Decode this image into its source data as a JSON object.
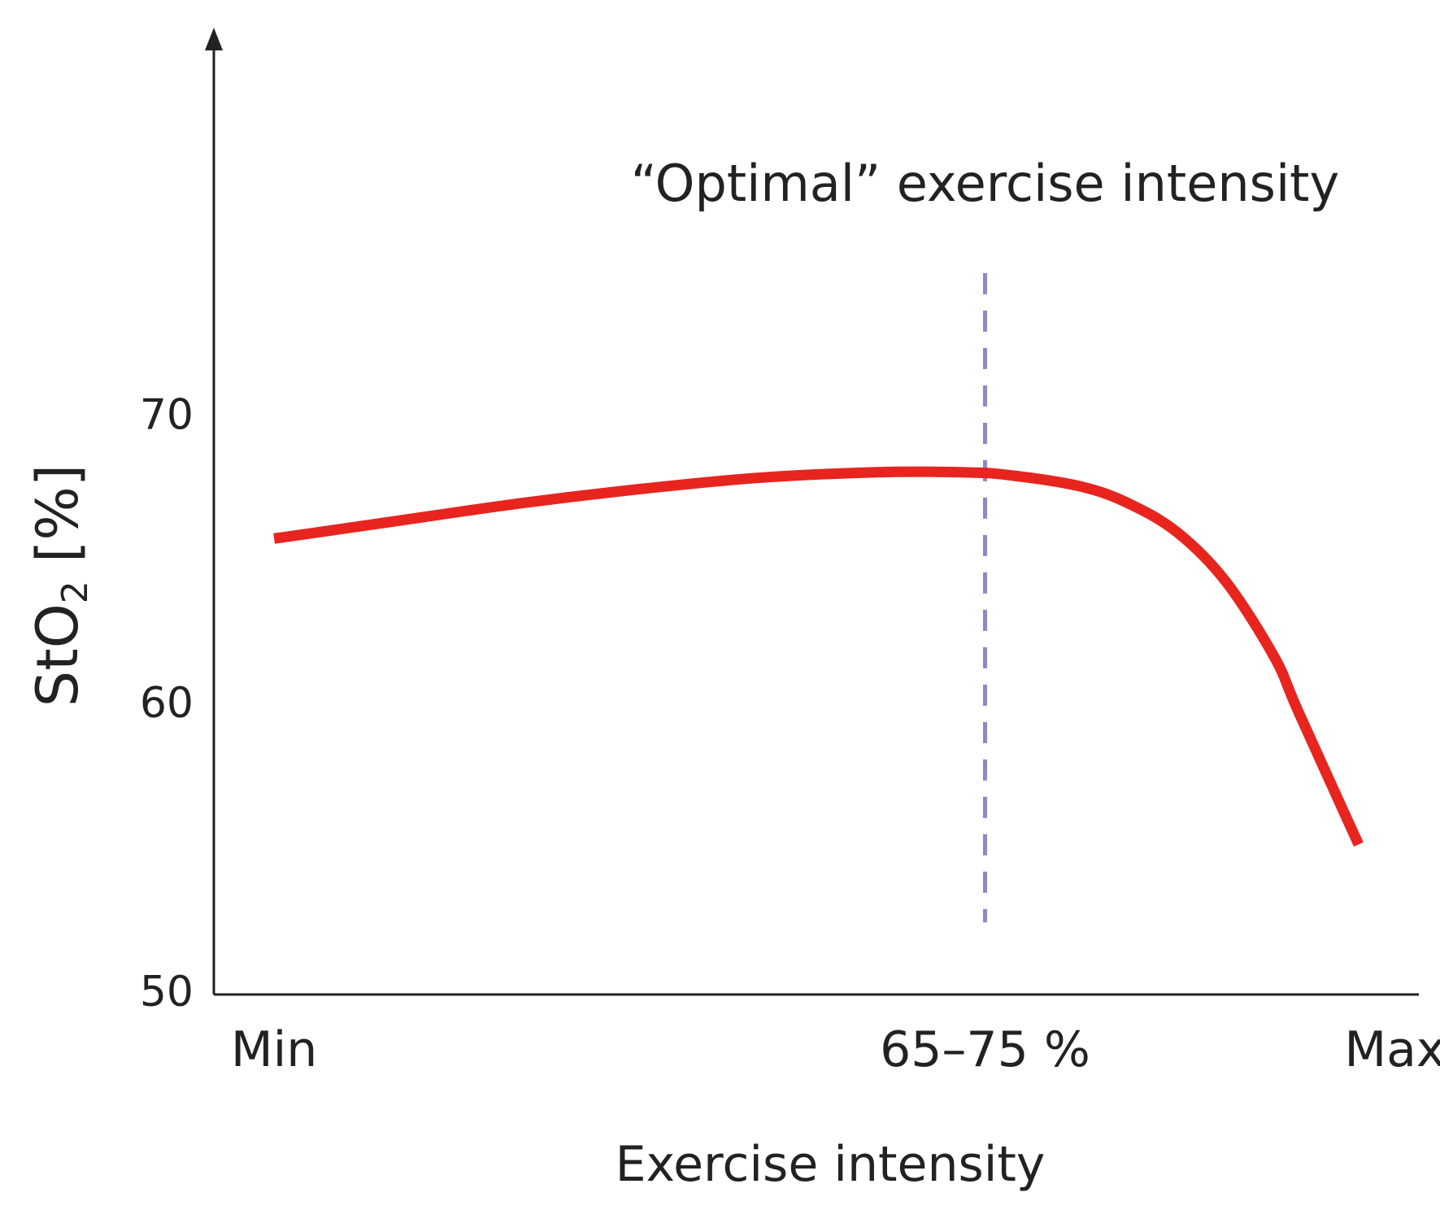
{
  "chart_data": {
    "type": "line",
    "title": "",
    "xlabel": "Exercise intensity",
    "ylabel": {
      "main": "StO",
      "subscript": "2",
      "unit": " [%]"
    },
    "ylim": [
      50,
      83
    ],
    "y_ticks": [
      {
        "value": 50,
        "label": "50"
      },
      {
        "value": 60,
        "label": "60"
      },
      {
        "value": 70,
        "label": "70"
      }
    ],
    "xlim": [
      0,
      100
    ],
    "x_ticks": [
      {
        "value": 5,
        "label": "Min"
      },
      {
        "value": 64,
        "label": "65–75 %"
      },
      {
        "value": 98,
        "label": "Max"
      }
    ],
    "series": [
      {
        "name": "StO2",
        "color": "#e8241f",
        "x": [
          5,
          15,
          25,
          35,
          45,
          55,
          62,
          66,
          72,
          76,
          80,
          84,
          88,
          90,
          95
        ],
        "y": [
          65.8,
          66.4,
          67.0,
          67.5,
          67.9,
          68.1,
          68.1,
          68.0,
          67.6,
          67.0,
          66.0,
          64.3,
          61.7,
          59.8,
          55.2
        ]
      }
    ],
    "annotations": [
      {
        "type": "vline",
        "x": 64,
        "y_from": 52.5,
        "y_to": 75.0,
        "color": "#8f86cc",
        "style": "dashed"
      },
      {
        "type": "text",
        "text": "“Optimal” exercise intensity",
        "x": 64,
        "y": 77.5
      }
    ],
    "grid": false,
    "legend": "none"
  }
}
